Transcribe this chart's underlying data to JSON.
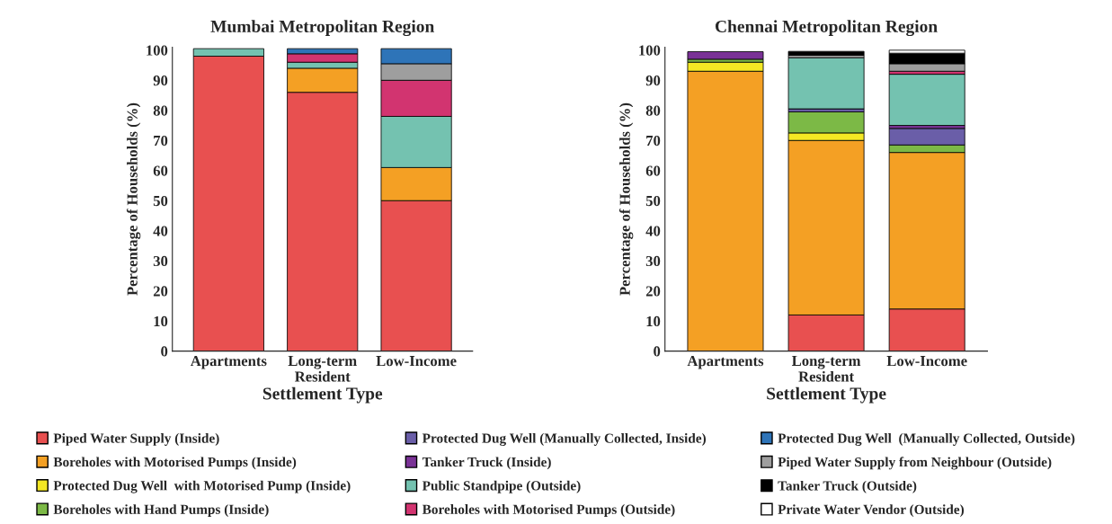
{
  "chart_data": [
    {
      "type": "bar",
      "stacked": true,
      "title": "Mumbai Metropolitan Region",
      "xlabel": "Settlement Type",
      "ylabel": "Percentage of Households (%)",
      "categories": [
        "Apartments",
        "Long-term\nResident",
        "Low-Income"
      ],
      "ylim": [
        0,
        101
      ],
      "yticks": [
        0,
        10,
        20,
        30,
        40,
        50,
        60,
        70,
        80,
        90,
        100
      ],
      "series": [
        {
          "color": "#e85050",
          "values": [
            98,
            86,
            50
          ]
        },
        {
          "color": "#f4a024",
          "values": [
            null,
            8,
            11
          ]
        },
        {
          "color": "#74c2b0",
          "values": [
            2.5,
            2,
            17
          ]
        },
        {
          "color": "#d23470",
          "values": [
            null,
            2.8,
            12
          ]
        },
        {
          "color": "#9e9e9e",
          "values": [
            null,
            null,
            5.5
          ]
        },
        {
          "color": "#2e74b8",
          "values": [
            null,
            1.7,
            5
          ]
        }
      ]
    },
    {
      "type": "bar",
      "stacked": true,
      "title": "Chennai Metropolitan Region",
      "xlabel": "Settlement Type",
      "ylabel": "Percentage of Households (%)",
      "categories": [
        "Apartments",
        "Long-term\nResident",
        "Low-Income"
      ],
      "ylim": [
        0,
        101
      ],
      "yticks": [
        0,
        10,
        20,
        30,
        40,
        50,
        60,
        70,
        80,
        90,
        100
      ],
      "legend": "bottom",
      "series": [
        {
          "name": "Piped Water Supply (Inside)",
          "color": "#e85050",
          "values": [
            null,
            12,
            14
          ]
        },
        {
          "name": "Boreholes with Motorised Pumps (Inside)",
          "color": "#f4a024",
          "values": [
            93,
            58,
            52
          ]
        },
        {
          "name": "Protected Dug Well  with Motorised Pump (Inside)",
          "color": "#f4e824",
          "values": [
            3,
            2.5,
            null
          ]
        },
        {
          "name": "Boreholes with Hand Pumps (Inside)",
          "color": "#7cb946",
          "values": [
            1,
            7,
            2.5
          ]
        },
        {
          "name": "Protected Dug Well (Manually Collected, Inside)",
          "color": "#6a5ea8",
          "values": [
            null,
            1,
            5.5
          ]
        },
        {
          "name": "Tanker Truck (Inside)",
          "color": "#7a3296",
          "values": [
            2.5,
            null,
            1
          ]
        },
        {
          "name": "Public Standpipe (Outside)",
          "color": "#74c2b0",
          "values": [
            null,
            17,
            17
          ]
        },
        {
          "name": "Boreholes with Motorised Pumps (Outside)",
          "color": "#d23470",
          "values": [
            null,
            null,
            1
          ]
        },
        {
          "name": "Protected Dug Well  (Manually Collected, Outside)",
          "color": "#2e74b8",
          "values": [
            null,
            null,
            null
          ]
        },
        {
          "name": "Piped Water Supply from Neighbour (Outside)",
          "color": "#9e9e9e",
          "values": [
            null,
            0.8,
            2.5
          ]
        },
        {
          "name": "Tanker Truck (Outside)",
          "color": "#000000",
          "values": [
            null,
            1.3,
            3.5
          ]
        },
        {
          "name": "Private Water Vendor (Outside)",
          "color": "#ffffff",
          "values": [
            null,
            null,
            1
          ]
        }
      ]
    }
  ]
}
